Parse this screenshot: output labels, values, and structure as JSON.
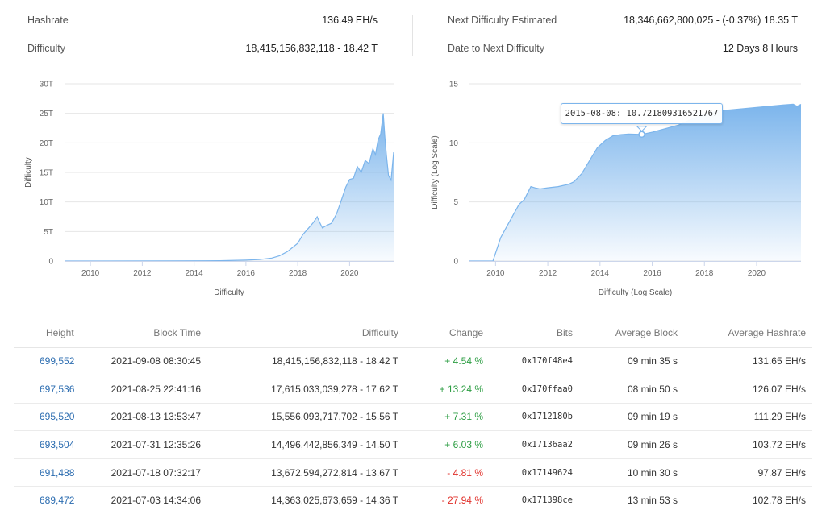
{
  "stats": {
    "hashrate": {
      "label": "Hashrate",
      "value": "136.49 EH/s"
    },
    "difficulty": {
      "label": "Difficulty",
      "value": "18,415,156,832,118 - 18.42 T"
    },
    "next_difficulty": {
      "label": "Next Difficulty Estimated",
      "value": "18,346,662,800,025 - (-0.37%) 18.35 T"
    },
    "date_to_next": {
      "label": "Date to Next Difficulty",
      "value": "12 Days 8 Hours"
    }
  },
  "chart_data": [
    {
      "type": "area",
      "title": "",
      "xlabel": "Difficulty",
      "ylabel": "Difficulty",
      "x_ticks": [
        "2010",
        "2012",
        "2014",
        "2016",
        "2018",
        "2020"
      ],
      "y_ticks": [
        "0",
        "5T",
        "10T",
        "15T",
        "20T",
        "25T",
        "30T"
      ],
      "xlim": [
        2009.0,
        2021.7
      ],
      "ylim": [
        0,
        30
      ],
      "y_unit": "T",
      "grid": true,
      "series": [
        {
          "color": "#7cb5ec",
          "x": [
            2009.0,
            2013.0,
            2015.0,
            2016.0,
            2016.5,
            2017.0,
            2017.3,
            2017.6,
            2017.8,
            2018.0,
            2018.2,
            2018.4,
            2018.6,
            2018.75,
            2018.85,
            2018.95,
            2019.1,
            2019.3,
            2019.5,
            2019.7,
            2019.85,
            2020.0,
            2020.15,
            2020.3,
            2020.45,
            2020.6,
            2020.75,
            2020.9,
            2021.0,
            2021.1,
            2021.2,
            2021.3,
            2021.36,
            2021.42,
            2021.5,
            2021.6,
            2021.7
          ],
          "y": [
            0,
            0.01,
            0.05,
            0.15,
            0.25,
            0.5,
            0.9,
            1.6,
            2.3,
            3.0,
            4.5,
            5.5,
            6.5,
            7.5,
            6.5,
            5.6,
            6.0,
            6.4,
            8.0,
            10.5,
            12.5,
            13.8,
            14.0,
            16.0,
            15.0,
            17.0,
            16.5,
            19.0,
            18.0,
            20.5,
            21.5,
            25.0,
            21.0,
            18.0,
            14.5,
            13.7,
            18.4
          ]
        }
      ]
    },
    {
      "type": "area",
      "title": "",
      "xlabel": "Difficulty (Log Scale)",
      "ylabel": "Difficulty (Log Scale)",
      "x_ticks": [
        "2010",
        "2012",
        "2014",
        "2016",
        "2018",
        "2020"
      ],
      "y_ticks": [
        "0",
        "5",
        "10",
        "15"
      ],
      "xlim": [
        2009.0,
        2021.7
      ],
      "ylim": [
        0,
        15
      ],
      "grid": true,
      "tooltip": "2015-08-08: 10.721809316521767",
      "tooltip_point": {
        "x": 2015.6,
        "y": 10.72
      },
      "series": [
        {
          "color": "#7cb5ec",
          "x": [
            2009.0,
            2009.9,
            2010.2,
            2010.5,
            2010.7,
            2010.9,
            2011.1,
            2011.35,
            2011.5,
            2011.7,
            2012.0,
            2012.4,
            2012.8,
            2013.0,
            2013.3,
            2013.6,
            2013.9,
            2014.2,
            2014.5,
            2014.8,
            2015.1,
            2015.6,
            2016.0,
            2016.5,
            2017.0,
            2017.5,
            2018.0,
            2018.5,
            2019.0,
            2019.5,
            2020.0,
            2020.5,
            2021.0,
            2021.4,
            2021.55,
            2021.7
          ],
          "y": [
            0,
            0,
            2.0,
            3.2,
            4.0,
            4.8,
            5.2,
            6.3,
            6.2,
            6.1,
            6.2,
            6.3,
            6.5,
            6.7,
            7.4,
            8.5,
            9.6,
            10.2,
            10.6,
            10.7,
            10.75,
            10.72,
            10.9,
            11.2,
            11.5,
            12.0,
            12.4,
            12.7,
            12.8,
            12.9,
            13.0,
            13.1,
            13.2,
            13.27,
            13.1,
            13.26
          ]
        }
      ]
    }
  ],
  "table": {
    "headers": {
      "height": "Height",
      "block_time": "Block Time",
      "difficulty": "Difficulty",
      "change": "Change",
      "bits": "Bits",
      "avg_block": "Average Block",
      "avg_hashrate": "Average Hashrate"
    },
    "rows": [
      {
        "height": "699,552",
        "block_time": "2021-09-08 08:30:45",
        "difficulty": "18,415,156,832,118 - 18.42 T",
        "change": "+ 4.54 %",
        "bits": "0x170f48e4",
        "avg_block": "09 min 35 s",
        "avg_hashrate": "131.65 EH/s"
      },
      {
        "height": "697,536",
        "block_time": "2021-08-25 22:41:16",
        "difficulty": "17,615,033,039,278 - 17.62 T",
        "change": "+ 13.24 %",
        "bits": "0x170ffaa0",
        "avg_block": "08 min 50 s",
        "avg_hashrate": "126.07 EH/s"
      },
      {
        "height": "695,520",
        "block_time": "2021-08-13 13:53:47",
        "difficulty": "15,556,093,717,702 - 15.56 T",
        "change": "+ 7.31 %",
        "bits": "0x1712180b",
        "avg_block": "09 min 19 s",
        "avg_hashrate": "111.29 EH/s"
      },
      {
        "height": "693,504",
        "block_time": "2021-07-31 12:35:26",
        "difficulty": "14,496,442,856,349 - 14.50 T",
        "change": "+ 6.03 %",
        "bits": "0x17136aa2",
        "avg_block": "09 min 26 s",
        "avg_hashrate": "103.72 EH/s"
      },
      {
        "height": "691,488",
        "block_time": "2021-07-18 07:32:17",
        "difficulty": "13,672,594,272,814 - 13.67 T",
        "change": "- 4.81 %",
        "bits": "0x17149624",
        "avg_block": "10 min 30 s",
        "avg_hashrate": "97.87 EH/s"
      },
      {
        "height": "689,472",
        "block_time": "2021-07-03 14:34:06",
        "difficulty": "14,363,025,673,659 - 14.36 T",
        "change": "- 27.94 %",
        "bits": "0x171398ce",
        "avg_block": "13 min 53 s",
        "avg_hashrate": "102.78 EH/s"
      }
    ]
  }
}
